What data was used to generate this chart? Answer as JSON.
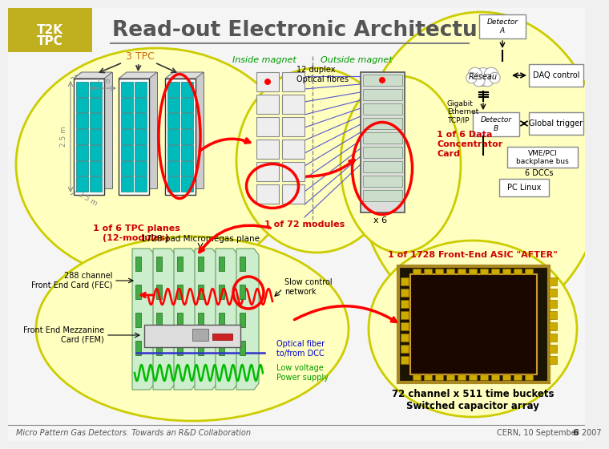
{
  "title": "Read-out Electronic Architecture",
  "bg_color": "#f0f0f0",
  "title_color": "#555555",
  "footer_left": "Micro Pattern Gas Detectors. Towards an R&D Collaboration",
  "footer_right": "CERN, 10 September 2007",
  "footer_page": "6",
  "label_3tpc": "3 TPC",
  "label_3tpc_color": "#cc6600",
  "label_inside": "Inside magnet",
  "label_outside": "Outside magnet",
  "label_gigabit": "Gigabit\nEthernet\nTCP/IP",
  "label_12dup": "12 duplex\nOptical fibres",
  "label_1of6tpc": "1 of 6 TPC planes\n(12-modules)",
  "label_1of72": "1 of 72 modules",
  "label_1of6data": "1 of 6 Data\nConcentrator\nCard",
  "label_x6": "x 6",
  "label_1728pad": "1728 pad Micromegas plane",
  "label_288ch": "288 channel\nFront End Card (FEC)",
  "label_fem": "Front End Mezzanine\nCard (FEM)",
  "label_slow": "Slow control\nnetwork",
  "label_optical": "Optical fiber\nto/from DCC",
  "label_lowvolt": "Low voltage\nPower supply",
  "label_1of1728": "1 of 1728 Front-End ASIC \"AFTER\"",
  "label_72ch": "72 channel x 511 time buckets\nSwitched capacitor array",
  "red_color": "#cc0000",
  "green_color": "#009900",
  "blue_color": "#0000cc",
  "yellow_fill": "#ffffc0",
  "yellow_edge": "#cccc00",
  "det_a_label": "Detector\nA",
  "reseau_label": "Réseau",
  "daq_label": "DAQ control",
  "det_b_label": "Detector\nB",
  "global_trigger_label": "Global trigger",
  "vme_label": "VME/PCI\nbackplane bus",
  "dccs_label": "6 DCCs",
  "pc_label": "PC Linux"
}
